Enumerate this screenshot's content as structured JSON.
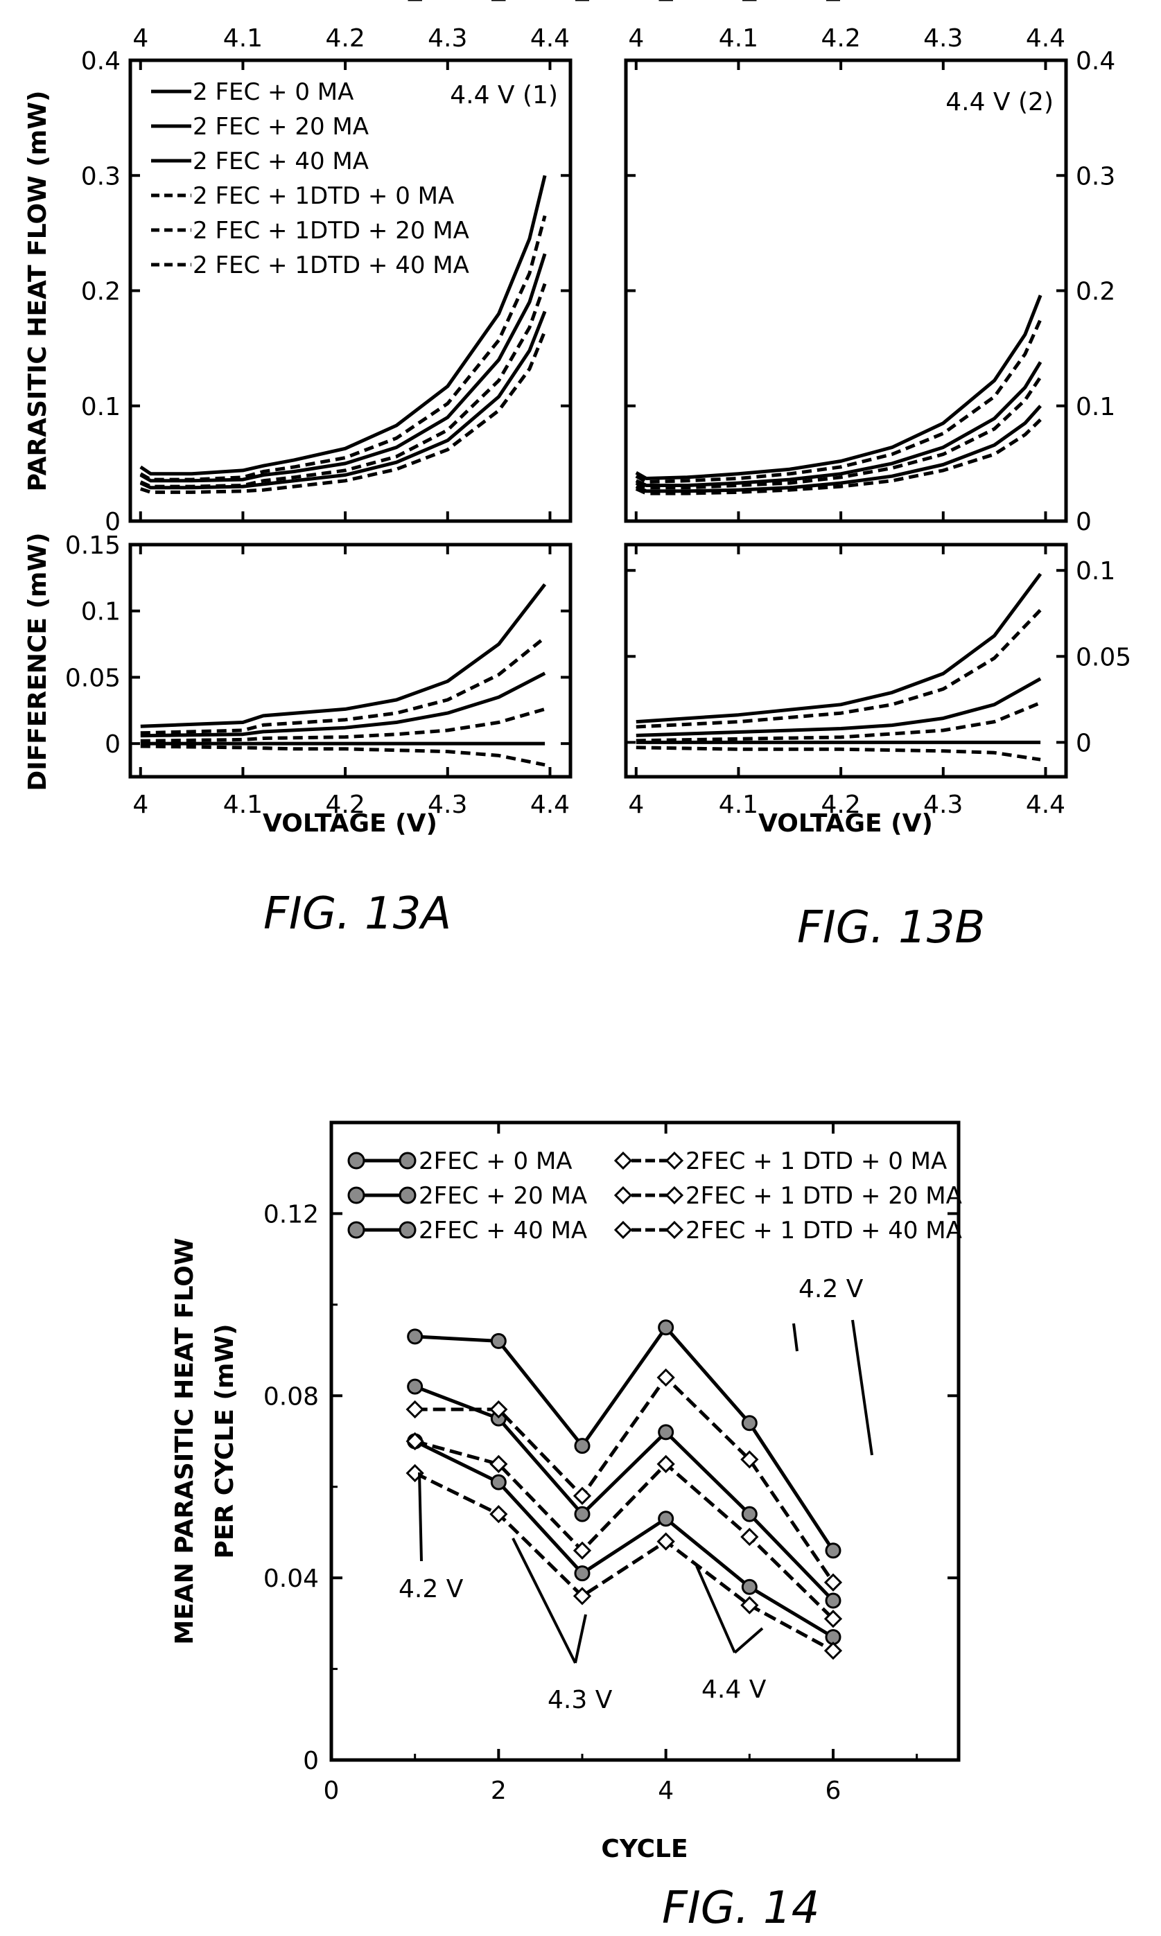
{
  "figures": {
    "fig13a_caption": "FIG. 13A",
    "fig13b_caption": "FIG. 13B",
    "fig14_caption": "FIG. 14"
  },
  "chart_data": [
    {
      "id": "fig13a_top",
      "type": "line",
      "annotation": "4.4 V (1)",
      "ylabel": "PARASITIC HEAT FLOW (mW)",
      "xlim": [
        3.99,
        4.42
      ],
      "ylim": [
        0,
        0.4
      ],
      "xticks": [
        4,
        4.1,
        4.2,
        4.3,
        4.4
      ],
      "xtick_labels": [
        "4",
        "4.1",
        "4.2",
        "4.3",
        "4.4"
      ],
      "yticks": [
        0,
        0.1,
        0.2,
        0.3,
        0.4
      ],
      "ytick_labels": [
        "0",
        "0.1",
        "0.2",
        "0.3",
        "0.4"
      ],
      "legend": [
        "2 FEC + 0 MA",
        "2 FEC + 20 MA",
        "2 FEC + 40 MA",
        "2 FEC + 1DTD + 0 MA",
        "2 FEC + 1DTD + 20 MA",
        "2 FEC + 1DTD + 40 MA"
      ],
      "legend_position": "top-left",
      "series": [
        {
          "name": "2 FEC + 0 MA",
          "style": "solid",
          "x": [
            4.0,
            4.01,
            4.05,
            4.1,
            4.12,
            4.15,
            4.2,
            4.25,
            4.3,
            4.35,
            4.38,
            4.395
          ],
          "y": [
            0.047,
            0.041,
            0.041,
            0.044,
            0.048,
            0.053,
            0.063,
            0.083,
            0.117,
            0.18,
            0.245,
            0.3
          ]
        },
        {
          "name": "2 FEC + 20 MA",
          "style": "solid",
          "x": [
            4.0,
            4.01,
            4.05,
            4.1,
            4.12,
            4.15,
            4.2,
            4.25,
            4.3,
            4.35,
            4.38,
            4.395
          ],
          "y": [
            0.04,
            0.035,
            0.035,
            0.036,
            0.04,
            0.043,
            0.05,
            0.064,
            0.09,
            0.14,
            0.19,
            0.232
          ]
        },
        {
          "name": "2 FEC + 40 MA",
          "style": "solid",
          "x": [
            4.0,
            4.01,
            4.05,
            4.1,
            4.12,
            4.15,
            4.2,
            4.25,
            4.3,
            4.35,
            4.38,
            4.395
          ],
          "y": [
            0.033,
            0.029,
            0.029,
            0.03,
            0.032,
            0.035,
            0.04,
            0.051,
            0.07,
            0.108,
            0.148,
            0.182
          ]
        },
        {
          "name": "2 FEC + 1DTD + 0 MA",
          "style": "dashed",
          "x": [
            4.0,
            4.01,
            4.05,
            4.1,
            4.12,
            4.15,
            4.2,
            4.25,
            4.3,
            4.35,
            4.38,
            4.395
          ],
          "y": [
            0.041,
            0.036,
            0.036,
            0.038,
            0.043,
            0.047,
            0.055,
            0.072,
            0.102,
            0.157,
            0.215,
            0.265
          ]
        },
        {
          "name": "2 FEC + 1DTD + 20 MA",
          "style": "dashed",
          "x": [
            4.0,
            4.01,
            4.05,
            4.1,
            4.12,
            4.15,
            4.2,
            4.25,
            4.3,
            4.35,
            4.38,
            4.395
          ],
          "y": [
            0.034,
            0.03,
            0.03,
            0.031,
            0.035,
            0.038,
            0.044,
            0.056,
            0.079,
            0.122,
            0.168,
            0.206
          ]
        },
        {
          "name": "2 FEC + 1DTD + 40 MA",
          "style": "dashed",
          "x": [
            4.0,
            4.01,
            4.05,
            4.1,
            4.12,
            4.15,
            4.2,
            4.25,
            4.3,
            4.35,
            4.38,
            4.395
          ],
          "y": [
            0.028,
            0.025,
            0.025,
            0.026,
            0.027,
            0.03,
            0.035,
            0.045,
            0.062,
            0.096,
            0.132,
            0.165
          ]
        }
      ]
    },
    {
      "id": "fig13a_bottom",
      "type": "line",
      "xlabel": "VOLTAGE (V)",
      "ylabel": "DIFFERENCE (mW)",
      "xlim": [
        3.99,
        4.42
      ],
      "ylim": [
        -0.025,
        0.15
      ],
      "xticks": [
        4,
        4.1,
        4.2,
        4.3,
        4.4
      ],
      "xtick_labels": [
        "4",
        "4.1",
        "4.2",
        "4.3",
        "4.4"
      ],
      "yticks": [
        0,
        0.05,
        0.1,
        0.15
      ],
      "ytick_labels": [
        "0",
        "0.05",
        "0.1",
        "0.15"
      ],
      "series": [
        {
          "style": "solid",
          "x": [
            4.0,
            4.1,
            4.12,
            4.2,
            4.25,
            4.3,
            4.35,
            4.395
          ],
          "y": [
            0.013,
            0.016,
            0.021,
            0.026,
            0.033,
            0.047,
            0.075,
            0.12
          ]
        },
        {
          "style": "dashed",
          "x": [
            4.0,
            4.1,
            4.12,
            4.2,
            4.25,
            4.3,
            4.35,
            4.395
          ],
          "y": [
            0.008,
            0.01,
            0.014,
            0.018,
            0.023,
            0.033,
            0.052,
            0.08
          ]
        },
        {
          "style": "solid",
          "x": [
            4.0,
            4.1,
            4.12,
            4.2,
            4.25,
            4.3,
            4.35,
            4.395
          ],
          "y": [
            0.006,
            0.007,
            0.009,
            0.012,
            0.016,
            0.023,
            0.035,
            0.053
          ]
        },
        {
          "style": "dashed",
          "x": [
            4.0,
            4.1,
            4.12,
            4.2,
            4.25,
            4.3,
            4.35,
            4.395
          ],
          "y": [
            0.002,
            0.003,
            0.004,
            0.005,
            0.007,
            0.01,
            0.016,
            0.026
          ]
        },
        {
          "style": "solid",
          "x": [
            4.0,
            4.395
          ],
          "y": [
            0.0,
            0.0
          ]
        },
        {
          "style": "dashed",
          "x": [
            4.0,
            4.1,
            4.15,
            4.2,
            4.25,
            4.3,
            4.35,
            4.395
          ],
          "y": [
            -0.002,
            -0.003,
            -0.004,
            -0.004,
            -0.005,
            -0.006,
            -0.009,
            -0.016
          ]
        }
      ]
    },
    {
      "id": "fig13b_top",
      "type": "line",
      "annotation": "4.4 V (2)",
      "xlim": [
        3.99,
        4.42
      ],
      "ylim": [
        0,
        0.4
      ],
      "xticks": [
        4,
        4.1,
        4.2,
        4.3,
        4.4
      ],
      "xtick_labels": [
        "4",
        "4.1",
        "4.2",
        "4.3",
        "4.4"
      ],
      "yticks": [
        0,
        0.1,
        0.2,
        0.3,
        0.4
      ],
      "ytick_labels": [
        "0",
        "0.1",
        "0.2",
        "0.3",
        "0.4"
      ],
      "series": [
        {
          "style": "solid",
          "x": [
            4.0,
            4.01,
            4.05,
            4.1,
            4.15,
            4.2,
            4.25,
            4.3,
            4.35,
            4.38,
            4.395
          ],
          "y": [
            0.042,
            0.037,
            0.038,
            0.041,
            0.045,
            0.052,
            0.064,
            0.085,
            0.122,
            0.162,
            0.196
          ]
        },
        {
          "style": "solid",
          "x": [
            4.0,
            4.01,
            4.05,
            4.1,
            4.15,
            4.2,
            4.25,
            4.3,
            4.35,
            4.38,
            4.395
          ],
          "y": [
            0.035,
            0.031,
            0.031,
            0.033,
            0.036,
            0.041,
            0.05,
            0.064,
            0.089,
            0.116,
            0.138
          ]
        },
        {
          "style": "solid",
          "x": [
            4.0,
            4.01,
            4.05,
            4.1,
            4.15,
            4.2,
            4.25,
            4.3,
            4.35,
            4.38,
            4.395
          ],
          "y": [
            0.03,
            0.026,
            0.026,
            0.027,
            0.029,
            0.033,
            0.039,
            0.049,
            0.066,
            0.085,
            0.1
          ]
        },
        {
          "style": "dashed",
          "x": [
            4.0,
            4.01,
            4.05,
            4.1,
            4.15,
            4.2,
            4.25,
            4.3,
            4.35,
            4.38,
            4.395
          ],
          "y": [
            0.039,
            0.034,
            0.035,
            0.037,
            0.041,
            0.047,
            0.058,
            0.076,
            0.108,
            0.145,
            0.175
          ]
        },
        {
          "style": "dashed",
          "x": [
            4.0,
            4.01,
            4.05,
            4.1,
            4.15,
            4.2,
            4.25,
            4.3,
            4.35,
            4.38,
            4.395
          ],
          "y": [
            0.033,
            0.029,
            0.029,
            0.031,
            0.033,
            0.038,
            0.046,
            0.058,
            0.08,
            0.105,
            0.125
          ]
        },
        {
          "style": "dashed",
          "x": [
            4.0,
            4.01,
            4.05,
            4.1,
            4.15,
            4.2,
            4.25,
            4.3,
            4.35,
            4.38,
            4.395
          ],
          "y": [
            0.028,
            0.024,
            0.024,
            0.025,
            0.027,
            0.03,
            0.035,
            0.044,
            0.058,
            0.075,
            0.088
          ]
        }
      ]
    },
    {
      "id": "fig13b_bottom",
      "type": "line",
      "xlabel": "VOLTAGE (V)",
      "xlim": [
        3.99,
        4.42
      ],
      "ylim": [
        -0.02,
        0.115
      ],
      "xticks": [
        4,
        4.1,
        4.2,
        4.3,
        4.4
      ],
      "xtick_labels": [
        "4",
        "4.1",
        "4.2",
        "4.3",
        "4.4"
      ],
      "yticks": [
        0,
        0.05,
        0.1
      ],
      "ytick_labels": [
        "0",
        "0.05",
        "0.1"
      ],
      "series": [
        {
          "style": "solid",
          "x": [
            4.0,
            4.1,
            4.2,
            4.25,
            4.3,
            4.35,
            4.395
          ],
          "y": [
            0.012,
            0.016,
            0.022,
            0.029,
            0.04,
            0.062,
            0.098
          ]
        },
        {
          "style": "dashed",
          "x": [
            4.0,
            4.1,
            4.2,
            4.25,
            4.3,
            4.35,
            4.395
          ],
          "y": [
            0.009,
            0.012,
            0.017,
            0.022,
            0.031,
            0.049,
            0.077
          ]
        },
        {
          "style": "solid",
          "x": [
            4.0,
            4.1,
            4.2,
            4.25,
            4.3,
            4.35,
            4.395
          ],
          "y": [
            0.004,
            0.006,
            0.008,
            0.01,
            0.014,
            0.022,
            0.037
          ]
        },
        {
          "style": "dashed",
          "x": [
            4.0,
            4.1,
            4.2,
            4.25,
            4.3,
            4.35,
            4.395
          ],
          "y": [
            0.001,
            0.002,
            0.003,
            0.005,
            0.007,
            0.012,
            0.023
          ]
        },
        {
          "style": "solid",
          "x": [
            4.0,
            4.395
          ],
          "y": [
            0.0,
            0.0
          ]
        },
        {
          "style": "dashed",
          "x": [
            4.0,
            4.1,
            4.2,
            4.3,
            4.35,
            4.395
          ],
          "y": [
            -0.003,
            -0.004,
            -0.004,
            -0.005,
            -0.006,
            -0.01
          ]
        }
      ]
    },
    {
      "id": "fig14",
      "type": "line",
      "xlabel": "CYCLE",
      "ylabel_lines": [
        "MEAN PARASITIC HEAT FLOW",
        "PER CYCLE (mW)"
      ],
      "xlim": [
        0,
        7.5
      ],
      "ylim": [
        0,
        0.14
      ],
      "xticks": [
        0,
        2,
        4,
        6
      ],
      "xtick_labels": [
        "0",
        "2",
        "4",
        "6"
      ],
      "yticks": [
        0,
        0.04,
        0.08,
        0.12
      ],
      "ytick_labels": [
        "0",
        "0.04",
        "0.08",
        "0.12"
      ],
      "categories": [
        1,
        2,
        3,
        4,
        5,
        6
      ],
      "legend_position": "top-left",
      "series": [
        {
          "name": "2FEC + 0 MA",
          "marker": "circle",
          "style": "solid",
          "values": [
            0.093,
            0.092,
            0.069,
            0.095,
            0.074,
            0.046
          ],
          "err": [
            0.001,
            0.001,
            0.001,
            0.001,
            0.001,
            0.0005
          ]
        },
        {
          "name": "2FEC + 20 MA",
          "marker": "circle",
          "style": "solid",
          "values": [
            0.082,
            0.075,
            0.054,
            0.072,
            0.054,
            0.035
          ],
          "err": [
            0.003,
            0.003,
            0.002,
            0.004,
            0.002,
            0.001
          ]
        },
        {
          "name": "2FEC + 40 MA",
          "marker": "circle",
          "style": "solid",
          "values": [
            0.07,
            0.061,
            0.041,
            0.053,
            0.038,
            0.027
          ],
          "err": [
            0.0005,
            0.0005,
            0.0005,
            0.0005,
            0.0005,
            0.0005
          ]
        },
        {
          "name": "2FEC + 1 DTD + 0 MA",
          "marker": "diamond",
          "style": "dashed",
          "values": [
            0.077,
            0.077,
            0.058,
            0.084,
            0.066,
            0.039
          ]
        },
        {
          "name": "2FEC + 1 DTD + 20 MA",
          "marker": "diamond",
          "style": "dashed",
          "values": [
            0.07,
            0.065,
            0.046,
            0.065,
            0.049,
            0.031
          ]
        },
        {
          "name": "2FEC + 1 DTD + 40 MA",
          "marker": "diamond",
          "style": "dashed",
          "values": [
            0.063,
            0.054,
            0.036,
            0.048,
            0.034,
            0.024
          ]
        }
      ],
      "annotations": [
        "4.2 V",
        "4.3 V",
        "4.4 V",
        "4.2 V"
      ]
    }
  ]
}
